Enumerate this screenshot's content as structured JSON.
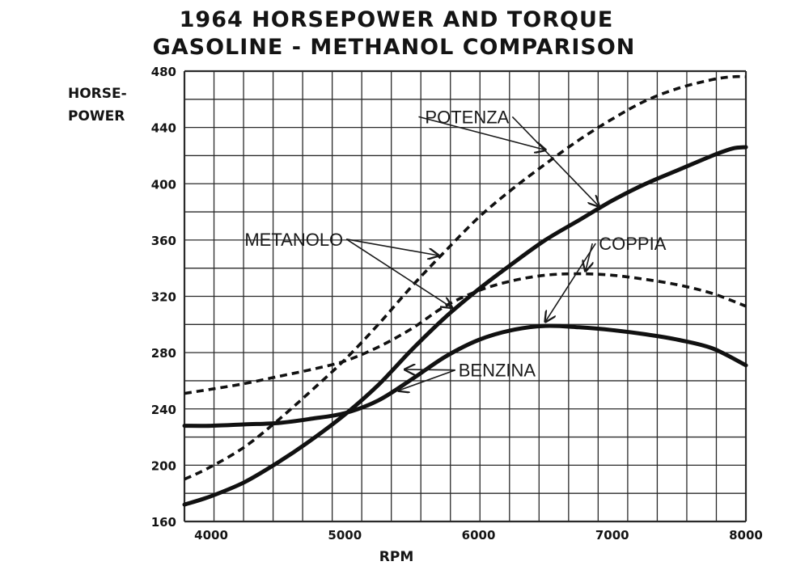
{
  "chart_data": {
    "type": "line",
    "title_line1": "1964 HORSEPOWER AND TORQUE",
    "title_line2": "GASOLINE - METHANOL COMPARISON",
    "ylabel_line1": "HORSE-",
    "ylabel_line2": "POWER",
    "xlabel": "RPM",
    "xlim": [
      3800,
      8000
    ],
    "ylim": [
      160,
      480
    ],
    "x_ticks": [
      "4000",
      "5000",
      "6000",
      "7000",
      "8000"
    ],
    "y_ticks": [
      "160",
      "200",
      "240",
      "280",
      "320",
      "360",
      "400",
      "440",
      "480"
    ],
    "grid": true,
    "series": [
      {
        "style": "dashed",
        "points": [
          [
            3800,
            190
          ],
          [
            4000,
            199
          ],
          [
            4250,
            213
          ],
          [
            4500,
            232
          ],
          [
            4750,
            253
          ],
          [
            5000,
            275
          ],
          [
            5250,
            300
          ],
          [
            5500,
            327
          ],
          [
            5750,
            352
          ],
          [
            6000,
            376
          ],
          [
            6250,
            396
          ],
          [
            6500,
            414
          ],
          [
            6750,
            431
          ],
          [
            7000,
            446
          ],
          [
            7250,
            459
          ],
          [
            7500,
            468
          ],
          [
            7750,
            474
          ],
          [
            7900,
            476
          ],
          [
            8000,
            476
          ]
        ]
      },
      {
        "style": "solid",
        "points": [
          [
            3800,
            172
          ],
          [
            4000,
            178
          ],
          [
            4250,
            188
          ],
          [
            4500,
            202
          ],
          [
            4750,
            218
          ],
          [
            5000,
            236
          ],
          [
            5250,
            257
          ],
          [
            5500,
            282
          ],
          [
            5750,
            305
          ],
          [
            6000,
            325
          ],
          [
            6250,
            343
          ],
          [
            6500,
            360
          ],
          [
            6750,
            374
          ],
          [
            7000,
            388
          ],
          [
            7250,
            400
          ],
          [
            7500,
            410
          ],
          [
            7750,
            420
          ],
          [
            7900,
            425
          ],
          [
            8000,
            426
          ]
        ]
      },
      {
        "style": "dashed",
        "points": [
          [
            3800,
            251
          ],
          [
            4000,
            254
          ],
          [
            4250,
            258
          ],
          [
            4500,
            263
          ],
          [
            4750,
            268
          ],
          [
            5000,
            274
          ],
          [
            5250,
            284
          ],
          [
            5500,
            297
          ],
          [
            5750,
            313
          ],
          [
            6000,
            324
          ],
          [
            6250,
            331
          ],
          [
            6500,
            335
          ],
          [
            6750,
            336
          ],
          [
            7000,
            335
          ],
          [
            7250,
            332
          ],
          [
            7500,
            328
          ],
          [
            7750,
            322
          ],
          [
            8000,
            313
          ]
        ]
      },
      {
        "style": "solid",
        "points": [
          [
            3800,
            228
          ],
          [
            4000,
            228
          ],
          [
            4250,
            229
          ],
          [
            4500,
            230
          ],
          [
            4750,
            233
          ],
          [
            5000,
            237
          ],
          [
            5250,
            246
          ],
          [
            5500,
            261
          ],
          [
            5750,
            277
          ],
          [
            6000,
            289
          ],
          [
            6250,
            296
          ],
          [
            6500,
            299
          ],
          [
            6750,
            298
          ],
          [
            7000,
            296
          ],
          [
            7250,
            293
          ],
          [
            7500,
            289
          ],
          [
            7750,
            283
          ],
          [
            8000,
            271
          ]
        ]
      }
    ],
    "annotations": [
      {
        "label": "POTENZA",
        "x": 5600,
        "y": 443,
        "arrow_targets": [
          [
            6500,
            424
          ],
          [
            6900,
            384
          ]
        ]
      },
      {
        "label": "METANOLO",
        "x": 4250,
        "y": 356,
        "arrow_targets": [
          [
            5700,
            349
          ],
          [
            5800,
            312
          ]
        ]
      },
      {
        "label": "COPPIA",
        "x": 6900,
        "y": 353,
        "arrow_targets": [
          [
            6500,
            302
          ],
          [
            6800,
            338
          ]
        ]
      },
      {
        "label": "BENZINA",
        "x": 5850,
        "y": 263,
        "arrow_targets": [
          [
            5450,
            268
          ],
          [
            5400,
            253
          ]
        ]
      }
    ]
  }
}
